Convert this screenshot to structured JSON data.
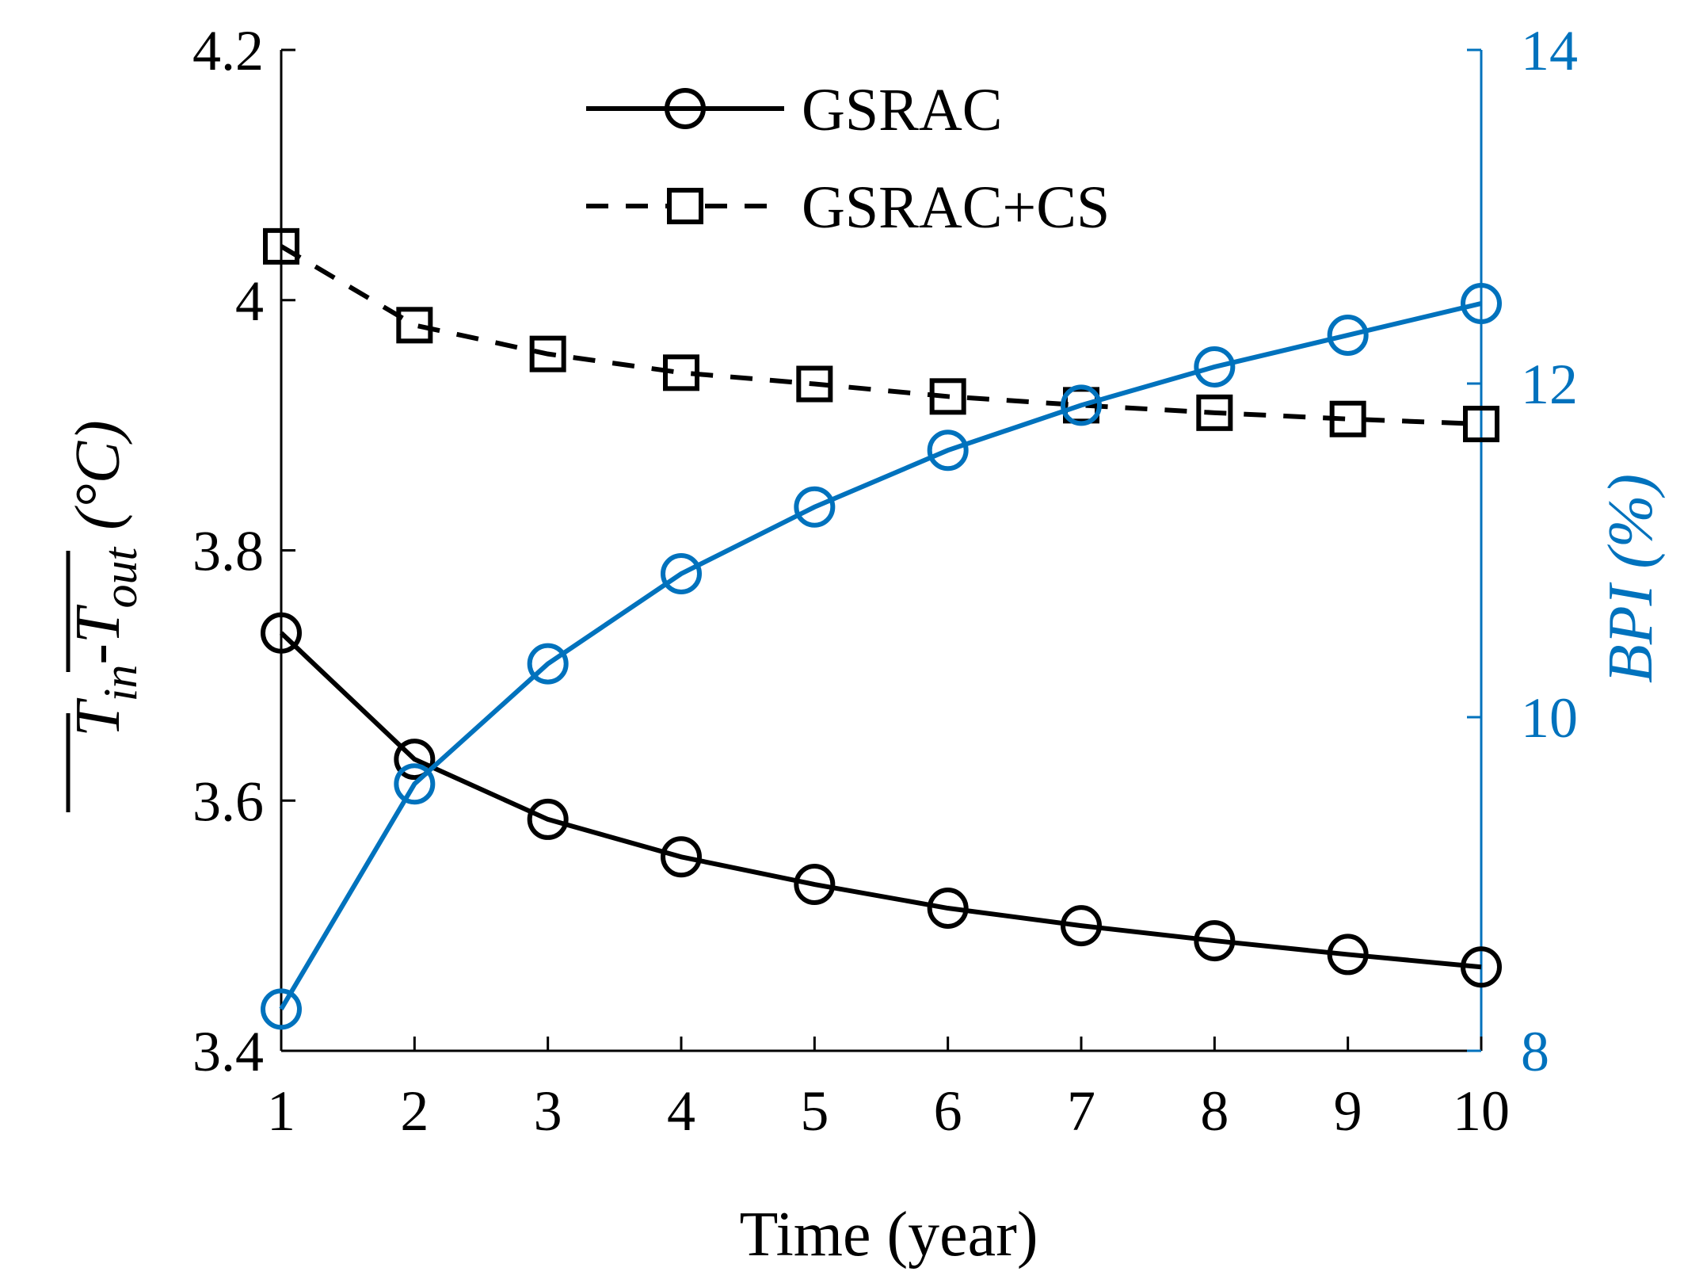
{
  "chart_data": {
    "type": "line",
    "title": "",
    "xlabel": "Time (year)",
    "x": [
      1,
      2,
      3,
      4,
      5,
      6,
      7,
      8,
      9,
      10
    ],
    "xlim": [
      1,
      10
    ],
    "x_ticks": [
      "1",
      "2",
      "3",
      "4",
      "5",
      "6",
      "7",
      "8",
      "9",
      "10"
    ],
    "left_axis": {
      "label_main": "T",
      "label_sub_in": "in",
      "label_sep": "-",
      "label_sub_out": "out",
      "label_unit": "(°C)",
      "ylim": [
        3.4,
        4.2
      ],
      "ticks": [
        3.4,
        3.6,
        3.8,
        4.0,
        4.2
      ],
      "tick_labels": [
        "3.4",
        "3.6",
        "3.8",
        "4",
        "4.2"
      ],
      "color": "#000000"
    },
    "right_axis": {
      "label": "BPI (%)",
      "ylim": [
        8,
        14
      ],
      "ticks": [
        8,
        10,
        12,
        14
      ],
      "tick_labels": [
        "8",
        "10",
        "12",
        "14"
      ],
      "color": "#0072BD"
    },
    "series": [
      {
        "name": "GSRAC",
        "axis": "left",
        "marker": "circle",
        "line": "solid",
        "color": "#000000",
        "values": [
          3.734,
          3.633,
          3.585,
          3.555,
          3.533,
          3.514,
          3.5,
          3.488,
          3.477,
          3.467
        ]
      },
      {
        "name": "GSRAC+CS",
        "axis": "left",
        "marker": "square",
        "line": "dashed",
        "color": "#000000",
        "values": [
          4.043,
          3.98,
          3.957,
          3.942,
          3.933,
          3.923,
          3.916,
          3.91,
          3.905,
          3.901
        ]
      },
      {
        "name": "BPI",
        "axis": "right",
        "marker": "circle",
        "line": "solid",
        "color": "#0072BD",
        "values": [
          8.25,
          9.6,
          10.32,
          10.86,
          11.26,
          11.6,
          11.87,
          12.1,
          12.29,
          12.48
        ]
      }
    ],
    "legend": {
      "position": "top-center",
      "entries": [
        "GSRAC",
        "GSRAC+CS"
      ]
    },
    "grid": false
  }
}
